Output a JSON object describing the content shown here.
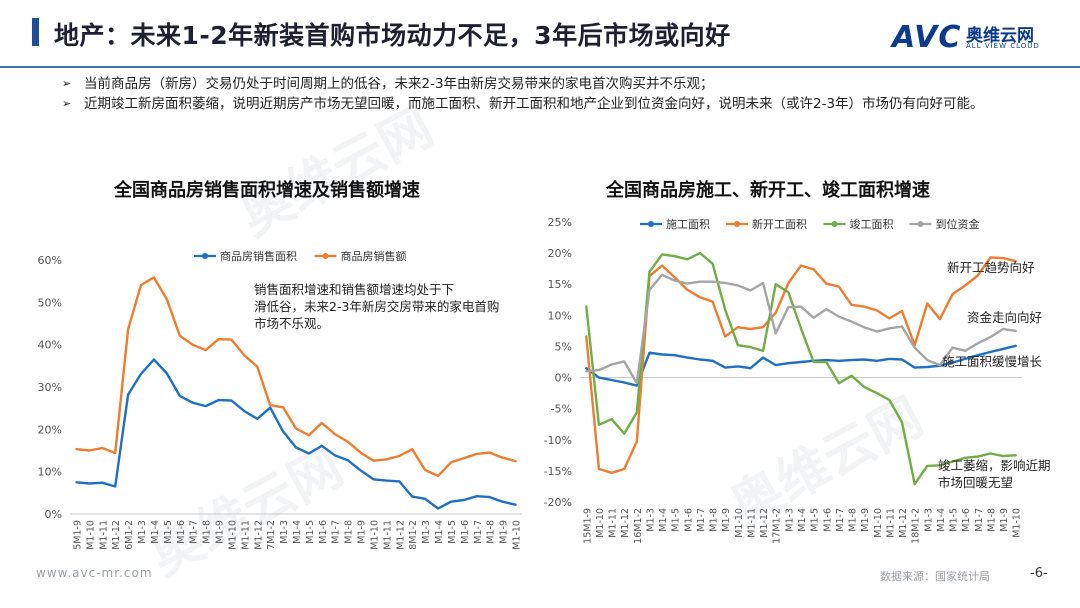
{
  "header": {
    "title": "地产：未来1-2年新装首购市场动力不足，3年后市场或向好",
    "logo_mark": "AVC",
    "logo_cn": "奥维云网",
    "logo_en": "ALL VIEW CLOUD"
  },
  "bullets": [
    "当前商品房（新房）交易仍处于时间周期上的低谷，未来2-3年由新房交易带来的家电首次购买并不乐观；",
    "近期竣工新房面积萎缩，说明近期房产市场无望回暖，而施工面积、新开工面积和地产企业到位资金向好，说明未来（或许2-3年）市场仍有向好可能。"
  ],
  "watermark": "奥维云网",
  "footer": {
    "url": "www.avc-mr.com",
    "source": "数据来源：国家统计局",
    "page": "-6-"
  },
  "chart_data": [
    {
      "type": "line",
      "title": "全国商品房销售面积增速及销售额增速",
      "annotation": "销售面积增速和销售额增速均处于下滑低谷，未来2-3年新房交房带来的家电首购市场不乐观。",
      "ylim": [
        0,
        60
      ],
      "yticks": [
        "0%",
        "10%",
        "20%",
        "30%",
        "40%",
        "50%",
        "60%"
      ],
      "xlabels": [
        "15M1-9",
        "M1-10",
        "M1-11",
        "M1-12",
        "16M1-2",
        "M1-3",
        "M1-4",
        "M1-5",
        "M1-6",
        "M1-7",
        "M1-8",
        "M1-9",
        "M1-10",
        "M1-11",
        "M1-12",
        "17M1-2",
        "M1-3",
        "M1-4",
        "M1-5",
        "M1-6",
        "M1-7",
        "M1-8",
        "M1-9",
        "M1-10",
        "M1-11",
        "M1-12",
        "18M1-2",
        "M1-3",
        "M1-4",
        "M1-5",
        "M1-6",
        "M1-7",
        "M1-8",
        "M1-9",
        "M1-10"
      ],
      "series": [
        {
          "name": "商品房销售面积",
          "color": "#1f6fc5",
          "values": [
            7.5,
            7.2,
            7.4,
            6.5,
            28.2,
            33.1,
            36.5,
            33.2,
            27.9,
            26.3,
            25.5,
            26.9,
            26.8,
            24.3,
            22.5,
            25.1,
            19.5,
            15.7,
            14.3,
            16.1,
            13.9,
            12.7,
            10.3,
            8.2,
            7.9,
            7.7,
            4.1,
            3.6,
            1.3,
            2.9,
            3.3,
            4.2,
            4.0,
            2.9,
            2.2
          ]
        },
        {
          "name": "商品房销售额",
          "color": "#ed7d31",
          "values": [
            15.3,
            15.0,
            15.6,
            14.4,
            43.6,
            54.1,
            55.9,
            50.7,
            42.1,
            40.0,
            38.7,
            41.3,
            41.2,
            37.5,
            34.8,
            25.7,
            25.2,
            20.2,
            18.6,
            21.5,
            18.9,
            17.1,
            14.5,
            12.6,
            12.9,
            13.7,
            15.3,
            10.4,
            9.0,
            12.2,
            13.2,
            14.2,
            14.5,
            13.3,
            12.5
          ]
        }
      ]
    },
    {
      "type": "line",
      "title": "全国商品房施工、新开工、竣工面积增速",
      "ylim": [
        -20,
        25
      ],
      "yticks": [
        "-20%",
        "-15%",
        "-10%",
        "-5%",
        "0%",
        "5%",
        "10%",
        "15%",
        "20%",
        "25%"
      ],
      "xlabels": [
        "15M1-9",
        "M1-10",
        "M1-11",
        "M1-12",
        "16M1-2",
        "M1-3",
        "M1-4",
        "M1-5",
        "M1-6",
        "M1-7",
        "M1-8",
        "M1-9",
        "M1-10",
        "M1-11",
        "M1-12",
        "17M1-2",
        "M1-3",
        "M1-4",
        "M1-5",
        "M1-6",
        "M1-7",
        "M1-8",
        "M1-9",
        "M1-10",
        "M1-11",
        "M1-12",
        "18M1-2",
        "M1-3",
        "M1-4",
        "M1-5",
        "M1-6",
        "M1-7",
        "M1-8",
        "M1-9",
        "M1-10"
      ],
      "annotations": [
        "新开工趋势向好",
        "资金走向向好",
        "施工面积缓慢增长",
        "竣工萎缩，影响近期市场回暖无望"
      ],
      "series": [
        {
          "name": "施工面积",
          "color": "#1f6fc5",
          "values": [
            1.5,
            0.0,
            -0.4,
            -0.8,
            -1.3,
            4.0,
            3.7,
            3.6,
            3.2,
            2.9,
            2.7,
            1.6,
            1.8,
            1.5,
            3.2,
            2.0,
            2.3,
            2.5,
            2.7,
            2.8,
            2.7,
            2.8,
            2.9,
            2.7,
            3.0,
            2.9,
            1.6,
            1.7,
            1.9,
            2.4,
            3.0,
            3.6,
            4.1,
            4.6,
            5.1
          ]
        },
        {
          "name": "新开工面积",
          "color": "#ed7d31",
          "values": [
            6.6,
            -14.7,
            -15.3,
            -14.7,
            -10.3,
            16.3,
            18.0,
            16.1,
            14.1,
            12.9,
            12.2,
            6.6,
            8.1,
            7.8,
            8.1,
            10.4,
            15.2,
            18.0,
            17.4,
            15.1,
            14.6,
            11.7,
            11.4,
            10.8,
            9.5,
            10.7,
            5.2,
            11.9,
            9.4,
            13.4,
            14.8,
            16.4,
            19.3,
            19.2,
            18.7
          ]
        },
        {
          "name": "竣工面积",
          "color": "#70ad47",
          "values": [
            11.4,
            -7.6,
            -6.7,
            -9.0,
            -5.6,
            17.0,
            19.8,
            19.5,
            19.0,
            20.0,
            18.3,
            10.9,
            5.2,
            4.9,
            4.3,
            15.0,
            13.7,
            7.9,
            2.5,
            2.5,
            -0.9,
            0.3,
            -1.5,
            -2.5,
            -3.6,
            -7.2,
            -17.1,
            -14.2,
            -14.1,
            -13.5,
            -12.9,
            -12.7,
            -12.2,
            -12.6,
            -12.5
          ]
        },
        {
          "name": "到位资金",
          "color": "#a5a5a5",
          "values": [
            1.0,
            1.2,
            2.1,
            2.6,
            -0.9,
            14.1,
            16.5,
            15.6,
            15.1,
            15.4,
            15.4,
            15.2,
            14.8,
            14.0,
            15.2,
            7.1,
            11.3,
            11.4,
            9.6,
            11.0,
            9.8,
            9.0,
            8.1,
            7.4,
            7.9,
            8.2,
            4.8,
            2.8,
            2.0,
            4.8,
            4.3,
            5.5,
            6.5,
            7.8,
            7.5
          ]
        }
      ]
    }
  ]
}
